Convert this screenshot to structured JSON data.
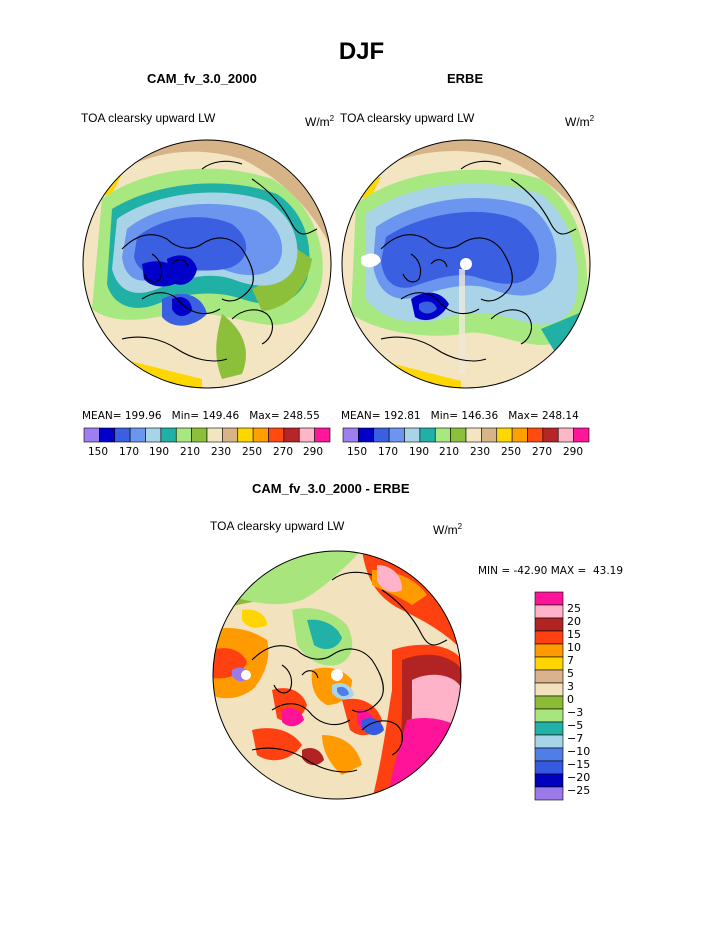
{
  "page_title": "DJF",
  "units": "W/m",
  "units_exp": "2",
  "variable": "TOA clearsky upward LW",
  "chart_data": [
    {
      "type": "heatmap",
      "projection": "north-polar-stereographic",
      "title": "CAM_fv_3.0_2000",
      "variable": "TOA clearsky upward LW",
      "units": "W/m2",
      "stats": {
        "mean_label": "MEAN=",
        "mean": "199.96",
        "min_label": "Min=",
        "min": "149.46",
        "max_label": "Max=",
        "max": "248.55"
      },
      "colorbar_levels": [
        "150",
        "170",
        "190",
        "210",
        "230",
        "250",
        "270",
        "290"
      ]
    },
    {
      "type": "heatmap",
      "projection": "north-polar-stereographic",
      "title": "ERBE",
      "variable": "TOA clearsky upward LW",
      "units": "W/m2",
      "stats": {
        "mean_label": "MEAN=",
        "mean": "192.81",
        "min_label": "Min=",
        "min": "146.36",
        "max_label": "Max=",
        "max": "248.14"
      },
      "colorbar_levels": [
        "150",
        "170",
        "190",
        "210",
        "230",
        "250",
        "270",
        "290"
      ]
    },
    {
      "type": "heatmap",
      "projection": "north-polar-stereographic",
      "title": "CAM_fv_3.0_2000 - ERBE",
      "variable": "TOA clearsky upward LW",
      "units": "W/m2",
      "stats": {
        "min_label": "MIN =",
        "min": "-42.90",
        "max_label": "MAX =",
        "max": "43.19"
      },
      "colorbar_levels": [
        "25",
        "20",
        "15",
        "10",
        "7",
        "5",
        "3",
        "0",
        "−3",
        "−5",
        "−7",
        "−10",
        "−15",
        "−20",
        "−25"
      ]
    }
  ],
  "colors": {
    "abs_scale": [
      "#9d7ff0",
      "#0000c8",
      "#3a5fe0",
      "#6b95ee",
      "#a9d4e8",
      "#20b0a5",
      "#a8e880",
      "#8cbf3a",
      "#f3e4c2",
      "#d7b487",
      "#ffd700",
      "#ff9f00",
      "#ff4a10",
      "#b62528",
      "#ffb6c8",
      "#ff169a"
    ],
    "diff_scale": [
      "#ff1499",
      "#ffb3c8",
      "#b22424",
      "#ff4010",
      "#ff9a00",
      "#ffd500",
      "#dab38c",
      "#f2e2be",
      "#8cbb36",
      "#a8e67d",
      "#22b1a7",
      "#a8d4e8",
      "#4f7ee8",
      "#355ae0",
      "#0000c0",
      "#9a7ae8"
    ]
  }
}
